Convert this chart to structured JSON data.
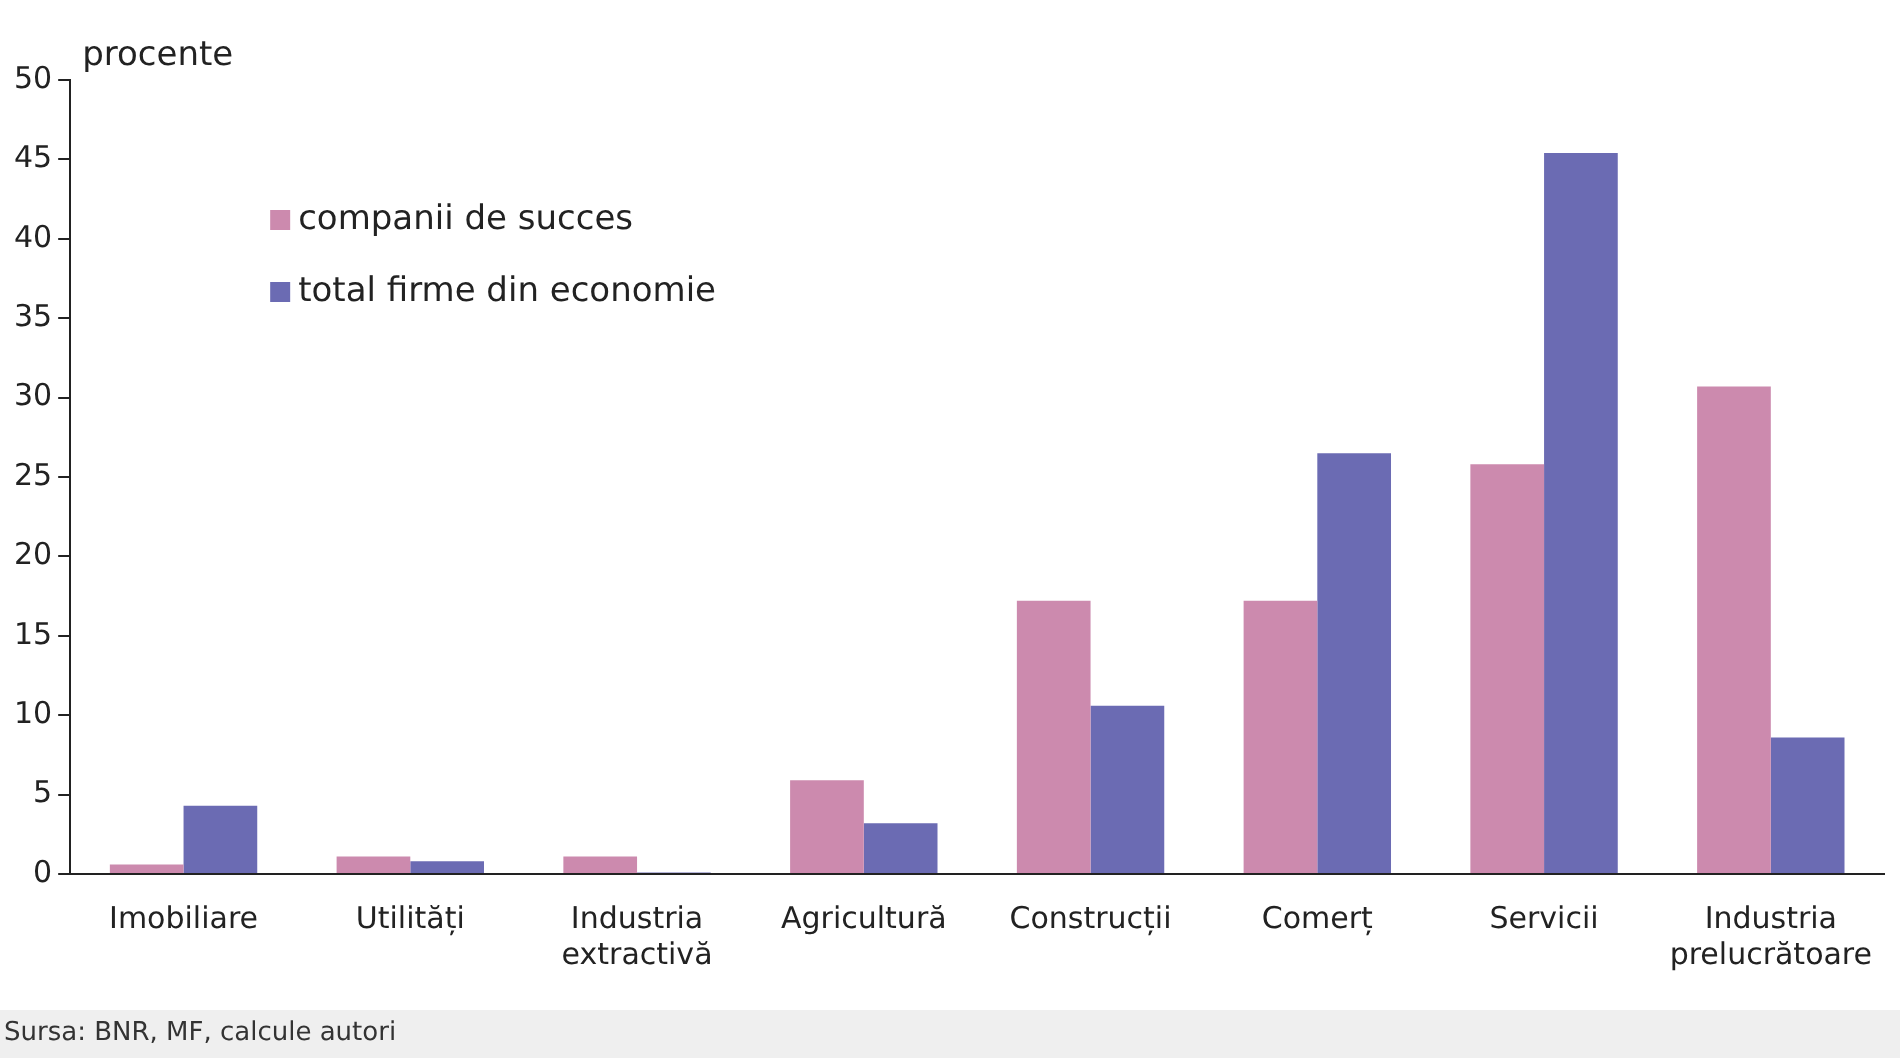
{
  "chart_data": {
    "type": "bar",
    "ylabel": "procente",
    "categories": [
      "Imobiliare",
      "Utilități",
      "Industria extractivă",
      "Agricultură",
      "Construcții",
      "Comerț",
      "Servicii",
      "Industria prelucrătoare"
    ],
    "series": [
      {
        "name": "companii de succes",
        "color": "#cc8aae",
        "values": [
          0.6,
          1.1,
          1.1,
          5.9,
          17.2,
          17.2,
          25.8,
          30.7
        ]
      },
      {
        "name": "total firme din economie",
        "color": "#6b6bb3",
        "values": [
          4.3,
          0.8,
          0.1,
          3.2,
          10.6,
          26.5,
          45.4,
          8.6
        ]
      }
    ],
    "ylim": [
      0,
      50
    ],
    "yticks": [
      0,
      5,
      10,
      15,
      20,
      25,
      30,
      35,
      40,
      45,
      50
    ],
    "grid": false,
    "legend": "top left",
    "annotations": [
      "Sursa: BNR, MF, calcule autori"
    ]
  }
}
